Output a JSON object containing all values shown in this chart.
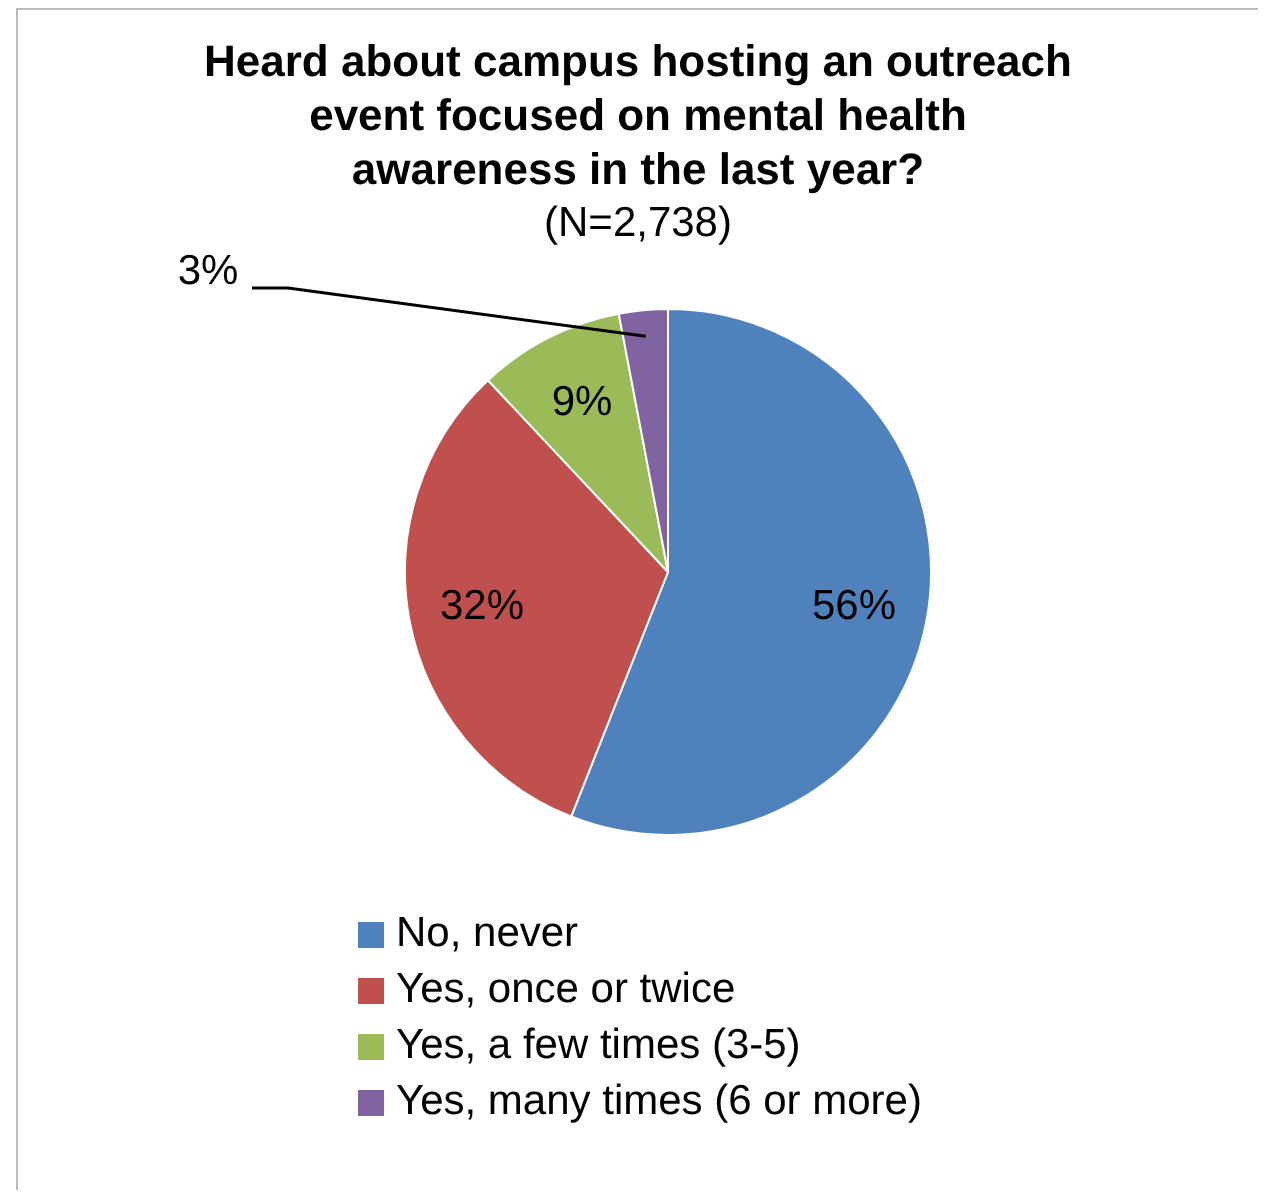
{
  "chart_data": {
    "type": "pie",
    "title": "Heard about campus hosting an outreach event focused on mental health awareness in the last year?",
    "subtitle": "(N=2,738)",
    "categories": [
      "No, never",
      "Yes, once or twice",
      "Yes, a few times (3-5)",
      "Yes, many times (6 or more)"
    ],
    "values": [
      56,
      32,
      9,
      3
    ],
    "value_labels": [
      "56%",
      "32%",
      "9%",
      "3%"
    ],
    "colors": [
      "#4f81bd",
      "#c0504d",
      "#9bbb59",
      "#8064a2"
    ],
    "legend": "bottom"
  }
}
